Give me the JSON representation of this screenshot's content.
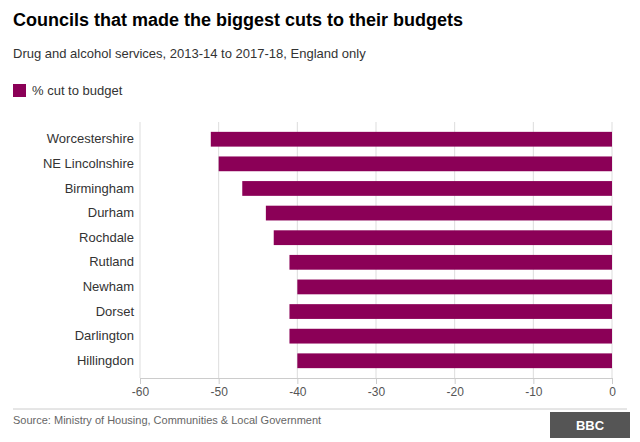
{
  "chart_data": {
    "type": "bar",
    "orientation": "horizontal",
    "title": "Councils that made the biggest cuts to their budgets",
    "subtitle": "Drug and alcohol services, 2013-14 to 2017-18, England only",
    "source": "Source: Ministry of Housing, Communities & Local Government",
    "annotations": [
      "BBC"
    ],
    "categories": [
      "Hillingdon",
      "Darlington",
      "Dorset",
      "Newham",
      "Rutland",
      "Rochdale",
      "Durham",
      "Birmingham",
      "NE Lincolnshire",
      "Worcestershire"
    ],
    "series": [
      {
        "name": "% cut to budget",
        "color": "#8B0057",
        "values": [
          -40,
          -41,
          -41,
          -40,
          -41,
          -43,
          -44,
          -47,
          -50,
          -51
        ]
      }
    ],
    "xlim": [
      -60,
      0
    ],
    "xticks": [
      -60,
      -50,
      -40,
      -30,
      -20,
      -10,
      0
    ],
    "grid": true,
    "legend": "top-left"
  }
}
